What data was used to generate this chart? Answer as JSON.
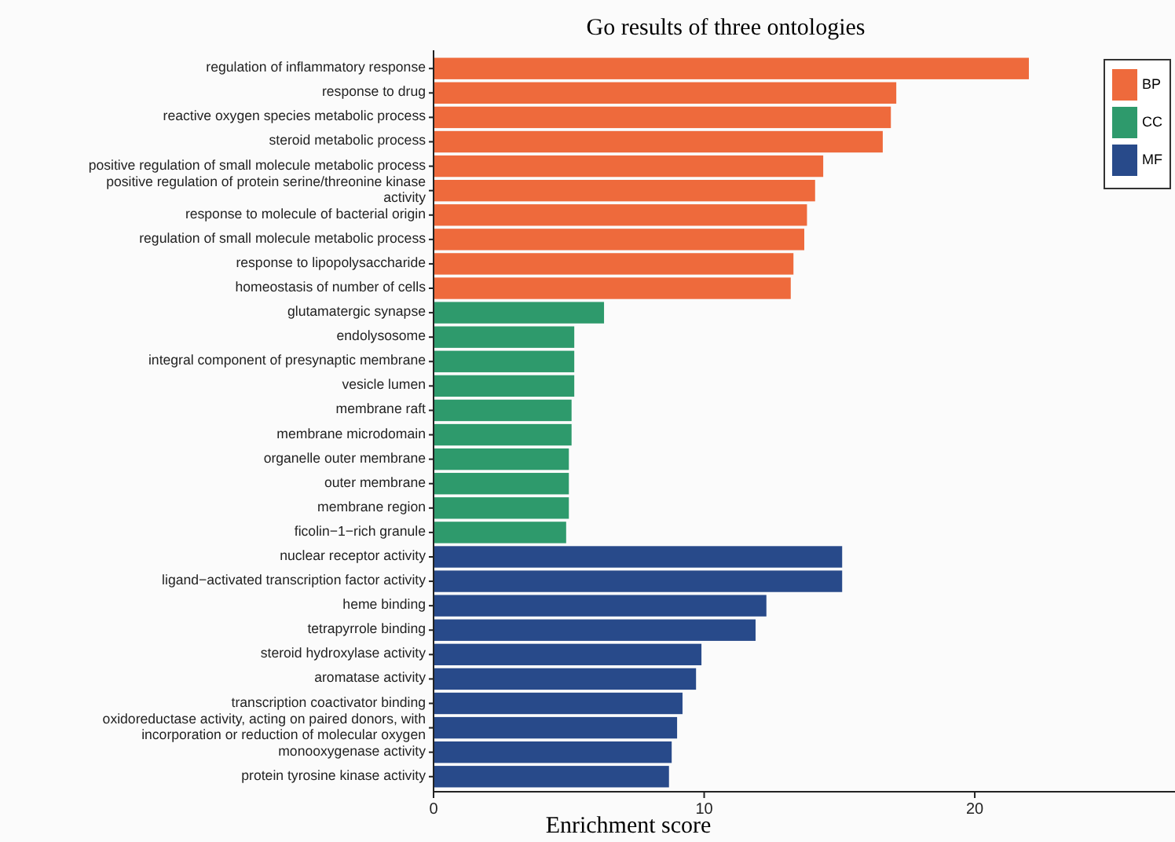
{
  "chart_data": {
    "type": "bar",
    "orientation": "horizontal",
    "title": "Go results of three ontologies",
    "xlabel": "Enrichment score",
    "categories": [
      "regulation of inflammatory response",
      "response to drug",
      "reactive oxygen species metabolic process",
      "steroid metabolic process",
      "positive regulation of small molecule metabolic process",
      "positive regulation of protein serine/threonine kinase activity",
      "response to molecule of bacterial origin",
      "regulation of small molecule metabolic process",
      "response to lipopolysaccharide",
      "homeostasis of number of cells",
      "glutamatergic synapse",
      "endolysosome",
      "integral component of presynaptic membrane",
      "vesicle lumen",
      "membrane raft",
      "membrane microdomain",
      "organelle outer membrane",
      "outer membrane",
      "membrane region",
      "ficolin−1−rich granule",
      "nuclear receptor activity",
      "ligand−activated transcription factor activity",
      "heme binding",
      "tetrapyrrole binding",
      "steroid hydroxylase activity",
      "aromatase activity",
      "transcription coactivator binding",
      "oxidoreductase activity, acting on paired donors, with incorporation or reduction of molecular oxygen",
      "monooxygenase activity",
      "protein tyrosine kinase activity"
    ],
    "series": [
      {
        "name": "BP",
        "color": "#ee6a3c",
        "values": [
          22.0,
          17.1,
          16.9,
          16.6,
          14.4,
          14.1,
          13.8,
          13.7,
          13.3,
          13.2,
          null,
          null,
          null,
          null,
          null,
          null,
          null,
          null,
          null,
          null,
          null,
          null,
          null,
          null,
          null,
          null,
          null,
          null,
          null,
          null
        ]
      },
      {
        "name": "CC",
        "color": "#2e9a6c",
        "values": [
          null,
          null,
          null,
          null,
          null,
          null,
          null,
          null,
          null,
          null,
          6.3,
          5.2,
          5.2,
          5.2,
          5.1,
          5.1,
          5.0,
          5.0,
          5.0,
          4.9,
          null,
          null,
          null,
          null,
          null,
          null,
          null,
          null,
          null,
          null
        ]
      },
      {
        "name": "MF",
        "color": "#284a8a",
        "values": [
          null,
          null,
          null,
          null,
          null,
          null,
          null,
          null,
          null,
          null,
          null,
          null,
          null,
          null,
          null,
          null,
          null,
          null,
          null,
          null,
          15.1,
          15.1,
          12.3,
          11.9,
          9.9,
          9.7,
          9.2,
          9.0,
          8.8,
          8.7
        ]
      }
    ],
    "xlim": [
      0,
      27.4
    ],
    "xticks": [
      0,
      10,
      20
    ],
    "grid": false,
    "legend": "top right"
  }
}
